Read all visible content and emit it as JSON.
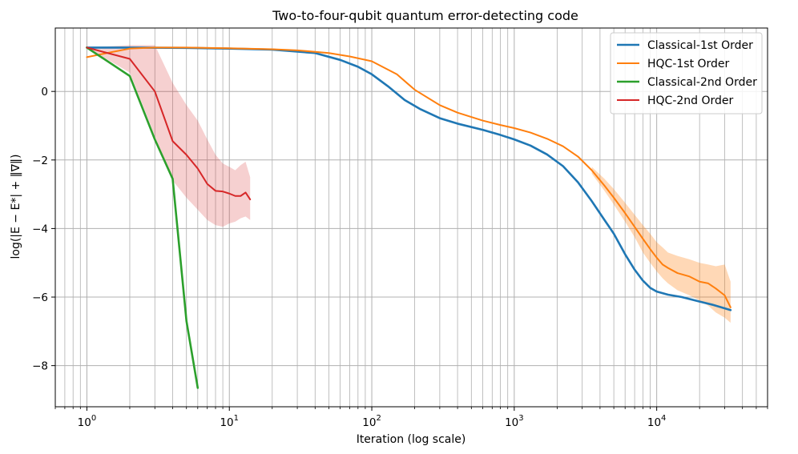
{
  "chart_data": {
    "type": "line",
    "title": "Two-to-four-qubit quantum error-detecting code",
    "xlabel": "Iteration (log scale)",
    "ylabel": "log(|E − E*| + ‖∇‖)",
    "xscale": "log",
    "xlim": [
      0.6,
      60000
    ],
    "ylim": [
      -9.2,
      1.85
    ],
    "grid": "major and minor",
    "legend_position": "top-right",
    "x_ticks": [
      {
        "value": 1,
        "base": "10",
        "exp": "0"
      },
      {
        "value": 10,
        "base": "10",
        "exp": "1"
      },
      {
        "value": 100,
        "base": "10",
        "exp": "2"
      },
      {
        "value": 1000,
        "base": "10",
        "exp": "3"
      },
      {
        "value": 10000,
        "base": "10",
        "exp": "4"
      }
    ],
    "y_ticks": [
      {
        "value": 0,
        "label": "0"
      },
      {
        "value": -2,
        "label": "−2"
      },
      {
        "value": -4,
        "label": "−4"
      },
      {
        "value": -6,
        "label": "−6"
      },
      {
        "value": -8,
        "label": "−8"
      }
    ],
    "series": [
      {
        "name": "Classical-1st Order",
        "color": "#1f77b4",
        "width": 2.6,
        "x": [
          1,
          2,
          5,
          10,
          20,
          40,
          60,
          80,
          100,
          130,
          170,
          220,
          300,
          400,
          600,
          800,
          1000,
          1300,
          1700,
          2200,
          2800,
          3500,
          4300,
          5000,
          6000,
          7000,
          8000,
          9000,
          10000,
          12000,
          15000,
          20000,
          25000,
          33000
        ],
        "y": [
          1.28,
          1.28,
          1.27,
          1.25,
          1.22,
          1.12,
          0.92,
          0.72,
          0.5,
          0.15,
          -0.25,
          -0.52,
          -0.78,
          -0.94,
          -1.12,
          -1.27,
          -1.4,
          -1.58,
          -1.84,
          -2.18,
          -2.65,
          -3.2,
          -3.75,
          -4.15,
          -4.75,
          -5.2,
          -5.52,
          -5.73,
          -5.84,
          -5.93,
          -6.0,
          -6.13,
          -6.23,
          -6.38
        ]
      },
      {
        "name": "HQC-1st Order",
        "color": "#ff7f0e",
        "width": 2.0,
        "x": [
          1,
          1.5,
          2,
          3,
          5,
          10,
          20,
          30,
          50,
          70,
          100,
          150,
          200,
          300,
          400,
          600,
          800,
          1000,
          1300,
          1700,
          2200,
          2800,
          3500,
          4300,
          5000,
          6000,
          7000,
          8000,
          9000,
          10000,
          11000,
          12000,
          14000,
          17000,
          20000,
          23000,
          26000,
          30000,
          33000
        ],
        "y": [
          1.0,
          1.15,
          1.25,
          1.28,
          1.28,
          1.26,
          1.23,
          1.2,
          1.12,
          1.02,
          0.88,
          0.5,
          0.05,
          -0.4,
          -0.62,
          -0.85,
          -0.98,
          -1.07,
          -1.2,
          -1.38,
          -1.6,
          -1.9,
          -2.3,
          -2.75,
          -3.1,
          -3.55,
          -3.95,
          -4.3,
          -4.6,
          -4.85,
          -5.05,
          -5.15,
          -5.3,
          -5.4,
          -5.55,
          -5.6,
          -5.75,
          -5.95,
          -6.3
        ]
      },
      {
        "name": "Classical-2nd Order",
        "color": "#2ca02c",
        "width": 2.6,
        "x": [
          1,
          2,
          3,
          4,
          5,
          6
        ],
        "y": [
          1.28,
          0.45,
          -1.4,
          -2.55,
          -6.7,
          -8.65
        ]
      },
      {
        "name": "HQC-2nd Order",
        "color": "#d62728",
        "width": 2.0,
        "x": [
          1,
          2,
          3,
          4,
          5,
          6,
          7,
          8,
          9,
          10,
          11,
          12,
          13,
          14
        ],
        "y": [
          1.28,
          0.95,
          0.0,
          -1.45,
          -1.85,
          -2.25,
          -2.7,
          -2.9,
          -2.92,
          -2.98,
          -3.05,
          -3.05,
          -2.95,
          -3.15
        ]
      }
    ],
    "bands": [
      {
        "name": "HQC-1st Order spread",
        "color": "#ff7f0e",
        "opacity": 0.3,
        "x": [
          3500,
          4300,
          5000,
          6000,
          7000,
          8000,
          9000,
          10000,
          11000,
          12000,
          14000,
          17000,
          20000,
          23000,
          26000,
          30000,
          33000
        ],
        "low": [
          -2.4,
          -2.9,
          -3.3,
          -3.8,
          -4.25,
          -4.7,
          -5.0,
          -5.25,
          -5.45,
          -5.6,
          -5.8,
          -5.95,
          -6.1,
          -6.25,
          -6.45,
          -6.6,
          -6.75
        ],
        "high": [
          -2.2,
          -2.55,
          -2.85,
          -3.25,
          -3.6,
          -3.9,
          -4.15,
          -4.4,
          -4.55,
          -4.7,
          -4.8,
          -4.9,
          -5.0,
          -5.05,
          -5.1,
          -5.05,
          -5.55
        ]
      },
      {
        "name": "HQC-2nd Order spread",
        "color": "#d62728",
        "opacity": 0.22,
        "x": [
          1,
          2,
          3,
          4,
          5,
          6,
          7,
          8,
          9,
          10,
          11,
          12,
          13,
          14
        ],
        "low": [
          1.28,
          0.55,
          -1.3,
          -2.6,
          -3.1,
          -3.45,
          -3.75,
          -3.9,
          -3.95,
          -3.85,
          -3.8,
          -3.7,
          -3.65,
          -3.75
        ],
        "high": [
          1.28,
          1.35,
          1.35,
          0.25,
          -0.4,
          -0.85,
          -1.4,
          -1.85,
          -2.1,
          -2.2,
          -2.3,
          -2.15,
          -2.05,
          -2.5
        ]
      }
    ]
  }
}
